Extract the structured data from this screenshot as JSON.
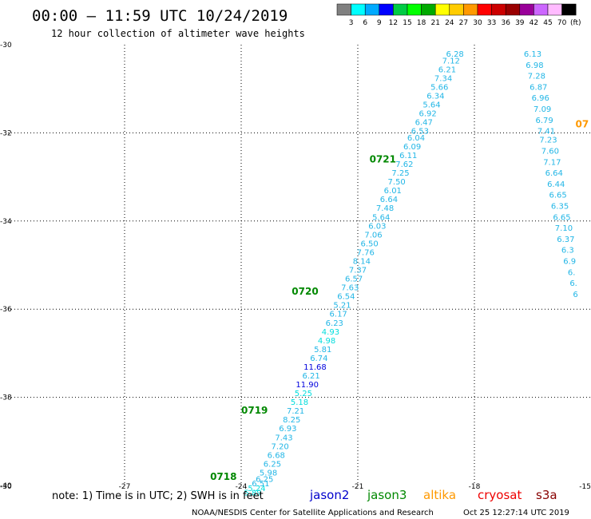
{
  "header": {
    "title": "00:00 – 11:59 UTC 10/24/2019",
    "subtitle": "12 hour collection of altimeter wave heights"
  },
  "colorbar": {
    "colors": [
      "#808080",
      "#00ffff",
      "#00aaff",
      "#0000ff",
      "#00cc44",
      "#00ff00",
      "#00aa00",
      "#ffff00",
      "#ffcc00",
      "#ff9900",
      "#ff0000",
      "#cc0000",
      "#990000",
      "#990099",
      "#cc66ff",
      "#ffbbff",
      "#000000"
    ],
    "labels": [
      "3",
      "6",
      "9",
      "12",
      "15",
      "18",
      "21",
      "24",
      "27",
      "30",
      "33",
      "36",
      "39",
      "42",
      "45",
      "70"
    ],
    "unit": "(ft)"
  },
  "footer": {
    "note": "note: 1) Time is in UTC; 2) SWH is in feet",
    "credit": "NOAA/NESDIS Center for Satellite Applications and Research",
    "timestamp": "Oct 25 12:27:14 UTC 2019"
  },
  "satellites": [
    {
      "name": "jason2",
      "color": "#0000cc"
    },
    {
      "name": "jason3",
      "color": "#008800"
    },
    {
      "name": "altika",
      "color": "#ff9900"
    },
    {
      "name": "cryosat",
      "color": "#ee0000"
    },
    {
      "name": "s3a",
      "color": "#880000"
    }
  ],
  "chart_data": {
    "type": "scatter",
    "title": "00:00 – 11:59 UTC 10/24/2019",
    "subtitle": "12 hour collection of altimeter wave heights",
    "xlim": [
      -30,
      -15
    ],
    "ylim": [
      -40,
      -30
    ],
    "xticks": [
      "-30",
      "-27",
      "-24",
      "-21",
      "-18",
      "-15"
    ],
    "yticks": [
      "-30",
      "-32",
      "-34",
      "-36",
      "-38",
      "-40"
    ],
    "grid": true,
    "time_labels": [
      {
        "text": "0718",
        "color": "#008800",
        "lon": -24.8,
        "lat": -39.8
      },
      {
        "text": "0719",
        "color": "#008800",
        "lon": -24.0,
        "lat": -38.3
      },
      {
        "text": "0720",
        "color": "#008800",
        "lon": -22.7,
        "lat": -35.6
      },
      {
        "text": "0721",
        "color": "#008800",
        "lon": -20.7,
        "lat": -32.6
      },
      {
        "text": "07",
        "color": "#ff9900",
        "lon": -15.4,
        "lat": -31.8
      }
    ],
    "track_a": {
      "color": "#22b6e6",
      "points": [
        {
          "lon": -18.5,
          "lat": -30.2,
          "v": "6.28"
        },
        {
          "lon": -18.6,
          "lat": -30.35,
          "v": "7.12"
        },
        {
          "lon": -18.7,
          "lat": -30.55,
          "v": "6.21"
        },
        {
          "lon": -18.8,
          "lat": -30.75,
          "v": "7.34"
        },
        {
          "lon": -18.9,
          "lat": -30.95,
          "v": "5.66"
        },
        {
          "lon": -19.0,
          "lat": -31.15,
          "v": "6.34"
        },
        {
          "lon": -19.1,
          "lat": -31.35,
          "v": "5.64"
        },
        {
          "lon": -19.2,
          "lat": -31.55,
          "v": "6.92"
        },
        {
          "lon": -19.3,
          "lat": -31.75,
          "v": "6.47"
        },
        {
          "lon": -19.4,
          "lat": -31.95,
          "v": "6.53"
        },
        {
          "lon": -19.5,
          "lat": -32.1,
          "v": "6.04"
        },
        {
          "lon": -19.6,
          "lat": -32.3,
          "v": "6.09"
        },
        {
          "lon": -19.7,
          "lat": -32.5,
          "v": "6.11"
        },
        {
          "lon": -19.8,
          "lat": -32.7,
          "v": "7.62"
        },
        {
          "lon": -19.9,
          "lat": -32.9,
          "v": "7.25"
        },
        {
          "lon": -20.0,
          "lat": -33.1,
          "v": "7.50"
        },
        {
          "lon": -20.1,
          "lat": -33.3,
          "v": "6.01"
        },
        {
          "lon": -20.2,
          "lat": -33.5,
          "v": "6.64"
        },
        {
          "lon": -20.3,
          "lat": -33.7,
          "v": "7.48"
        },
        {
          "lon": -20.4,
          "lat": -33.9,
          "v": "5.64"
        },
        {
          "lon": -20.5,
          "lat": -34.1,
          "v": "6.03"
        },
        {
          "lon": -20.6,
          "lat": -34.3,
          "v": "7.06"
        },
        {
          "lon": -20.7,
          "lat": -34.5,
          "v": "6.50"
        },
        {
          "lon": -20.8,
          "lat": -34.7,
          "v": "7.76"
        },
        {
          "lon": -20.9,
          "lat": -34.9,
          "v": "8.14"
        },
        {
          "lon": -21.0,
          "lat": -35.1,
          "v": "7.37"
        },
        {
          "lon": -21.1,
          "lat": -35.3,
          "v": "6.57"
        },
        {
          "lon": -21.2,
          "lat": -35.5,
          "v": "7.63"
        },
        {
          "lon": -21.3,
          "lat": -35.7,
          "v": "6.54"
        },
        {
          "lon": -21.4,
          "lat": -35.9,
          "v": "5.21"
        },
        {
          "lon": -21.5,
          "lat": -36.1,
          "v": "6.17"
        },
        {
          "lon": -21.6,
          "lat": -36.3,
          "v": "6.23"
        },
        {
          "lon": -21.7,
          "lat": -36.5,
          "v": "4.93",
          "color": "#00dddd"
        },
        {
          "lon": -21.8,
          "lat": -36.7,
          "v": "4.98",
          "color": "#00dddd"
        },
        {
          "lon": -21.9,
          "lat": -36.9,
          "v": "5.81"
        },
        {
          "lon": -22.0,
          "lat": -37.1,
          "v": "6.74"
        },
        {
          "lon": -22.1,
          "lat": -37.3,
          "v": "11.68",
          "color": "#0000dd"
        },
        {
          "lon": -22.2,
          "lat": -37.5,
          "v": "6.21"
        },
        {
          "lon": -22.3,
          "lat": -37.7,
          "v": "11.90",
          "color": "#0000dd"
        },
        {
          "lon": -22.4,
          "lat": -37.9,
          "v": "5.25",
          "color": "#00dddd"
        },
        {
          "lon": -22.5,
          "lat": -38.1,
          "v": "5.18",
          "color": "#00dddd"
        },
        {
          "lon": -22.6,
          "lat": -38.3,
          "v": "7.21"
        },
        {
          "lon": -22.7,
          "lat": -38.5,
          "v": "8.25"
        },
        {
          "lon": -22.8,
          "lat": -38.7,
          "v": "6.93"
        },
        {
          "lon": -22.9,
          "lat": -38.9,
          "v": "7.43"
        },
        {
          "lon": -23.0,
          "lat": -39.1,
          "v": "7.20"
        },
        {
          "lon": -23.1,
          "lat": -39.3,
          "v": "6.68"
        },
        {
          "lon": -23.2,
          "lat": -39.5,
          "v": "6.25"
        },
        {
          "lon": -23.3,
          "lat": -39.7,
          "v": "5.98"
        },
        {
          "lon": -23.4,
          "lat": -39.85,
          "v": "6.25"
        },
        {
          "lon": -23.5,
          "lat": -39.95,
          "v": "6.51"
        },
        {
          "lon": -23.6,
          "lat": -40.05,
          "v": "5.24",
          "color": "#00dddd"
        },
        {
          "lon": -23.7,
          "lat": -40.15,
          "v": "5.89",
          "color": "#00dddd"
        }
      ]
    },
    "track_b": {
      "color": "#22b6e6",
      "points": [
        {
          "lon": -16.5,
          "lat": -30.2,
          "v": "6.13"
        },
        {
          "lon": -16.45,
          "lat": -30.45,
          "v": "6.98"
        },
        {
          "lon": -16.4,
          "lat": -30.7,
          "v": "7.28"
        },
        {
          "lon": -16.35,
          "lat": -30.95,
          "v": "6.87"
        },
        {
          "lon": -16.3,
          "lat": -31.2,
          "v": "6.96"
        },
        {
          "lon": -16.25,
          "lat": -31.45,
          "v": "7.09"
        },
        {
          "lon": -16.2,
          "lat": -31.7,
          "v": "6.79"
        },
        {
          "lon": -16.15,
          "lat": -31.95,
          "v": "7.41"
        },
        {
          "lon": -16.1,
          "lat": -32.15,
          "v": "7.23"
        },
        {
          "lon": -16.05,
          "lat": -32.4,
          "v": "7.60"
        },
        {
          "lon": -16.0,
          "lat": -32.65,
          "v": "7.17"
        },
        {
          "lon": -15.95,
          "lat": -32.9,
          "v": "6.64"
        },
        {
          "lon": -15.9,
          "lat": -33.15,
          "v": "6.44"
        },
        {
          "lon": -15.85,
          "lat": -33.4,
          "v": "6.65"
        },
        {
          "lon": -15.8,
          "lat": -33.65,
          "v": "6.35"
        },
        {
          "lon": -15.75,
          "lat": -33.9,
          "v": "6.65"
        },
        {
          "lon": -15.7,
          "lat": -34.15,
          "v": "7.10"
        },
        {
          "lon": -15.65,
          "lat": -34.4,
          "v": "6.37"
        },
        {
          "lon": -15.6,
          "lat": -34.65,
          "v": "6.3"
        },
        {
          "lon": -15.55,
          "lat": -34.9,
          "v": "6.9"
        },
        {
          "lon": -15.5,
          "lat": -35.15,
          "v": "6."
        },
        {
          "lon": -15.45,
          "lat": -35.4,
          "v": "6."
        },
        {
          "lon": -15.4,
          "lat": -35.65,
          "v": "6"
        }
      ]
    }
  }
}
